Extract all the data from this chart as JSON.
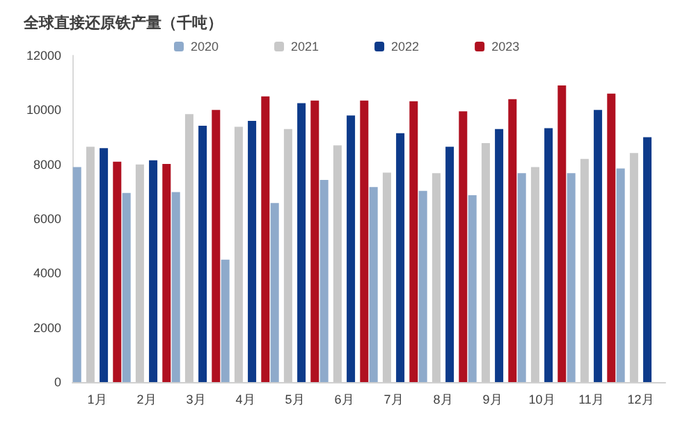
{
  "chart_data": {
    "type": "bar",
    "title": "全球直接还原铁产量（千吨）",
    "categories": [
      "1月",
      "2月",
      "3月",
      "4月",
      "5月",
      "6月",
      "7月",
      "8月",
      "9月",
      "10月",
      "11月",
      "12月"
    ],
    "series": [
      {
        "name": "2020",
        "color": "#8eaacb",
        "values": [
          7900,
          6950,
          6980,
          4500,
          6580,
          7430,
          7170,
          7030,
          6870,
          7680,
          7680,
          7850
        ]
      },
      {
        "name": "2021",
        "color": "#c8c8c8",
        "values": [
          8650,
          8000,
          9850,
          9380,
          9300,
          8700,
          7700,
          7680,
          8780,
          7900,
          8200,
          8420
        ]
      },
      {
        "name": "2022",
        "color": "#0d3a8a",
        "values": [
          8600,
          8150,
          9420,
          9600,
          10250,
          9800,
          9150,
          8650,
          9300,
          9330,
          10000,
          9000
        ]
      },
      {
        "name": "2023",
        "color": "#b01020",
        "values": [
          8100,
          8020,
          10000,
          10500,
          10350,
          10350,
          10320,
          9950,
          10400,
          10900,
          10600,
          null
        ]
      }
    ],
    "ylim": [
      0,
      12000
    ],
    "yticks": [
      0,
      2000,
      4000,
      6000,
      8000,
      10000,
      12000
    ],
    "grid": false,
    "legend": "top"
  }
}
